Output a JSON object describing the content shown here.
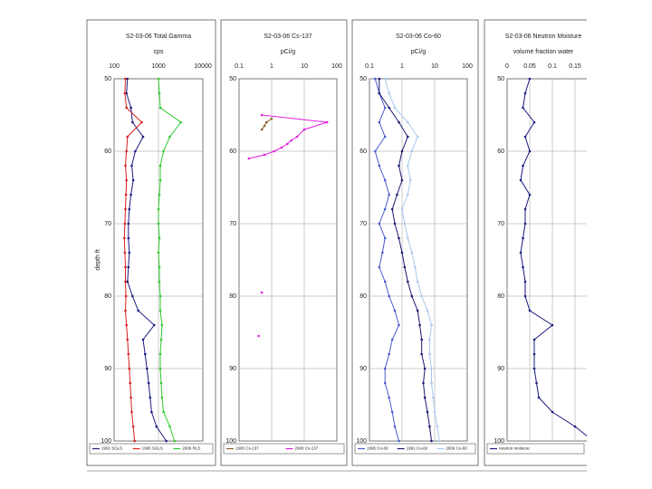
{
  "chart_data": [
    {
      "type": "line",
      "title": "S2-03-06 Total Gamma",
      "xlabel": "cps",
      "ylabel": "depth ft",
      "xlog": true,
      "xlim": [
        100,
        10000
      ],
      "xticks": [
        100,
        1000,
        10000
      ],
      "ylim": [
        50,
        100
      ],
      "yticks": [
        50,
        60,
        70,
        80,
        90,
        100
      ],
      "grid": true,
      "series": [
        {
          "name": "1991 SGLS",
          "color": "#1a1a80",
          "y": [
            50,
            52,
            54,
            56,
            58,
            60,
            62,
            64,
            66,
            68,
            70,
            72,
            74,
            76,
            78,
            80,
            82,
            84,
            86,
            88,
            90,
            92,
            94,
            96,
            98,
            100
          ],
          "values": [
            200,
            190,
            240,
            260,
            450,
            300,
            250,
            270,
            240,
            220,
            210,
            210,
            220,
            210,
            200,
            260,
            350,
            800,
            450,
            500,
            550,
            600,
            650,
            700,
            900,
            1500
          ]
        },
        {
          "name": "1995 SGLS",
          "color": "#d42020",
          "y": [
            50,
            52,
            54,
            56,
            58,
            60,
            62,
            64,
            66,
            68,
            70,
            72,
            74,
            76,
            78,
            80,
            82,
            84,
            86,
            88,
            90,
            92,
            94,
            96,
            98,
            100
          ],
          "values": [
            180,
            175,
            190,
            420,
            200,
            190,
            180,
            190,
            185,
            180,
            175,
            170,
            175,
            180,
            180,
            185,
            180,
            190,
            200,
            210,
            220,
            230,
            240,
            250,
            270,
            290
          ]
        },
        {
          "name": "2006 RLS",
          "color": "#2ec82e",
          "y": [
            50,
            52,
            54,
            56,
            58,
            60,
            62,
            64,
            66,
            68,
            70,
            72,
            74,
            76,
            78,
            80,
            82,
            84,
            86,
            88,
            90,
            92,
            94,
            96,
            98,
            100
          ],
          "values": [
            1000,
            1050,
            1100,
            3200,
            1800,
            1300,
            1100,
            1100,
            1050,
            1000,
            1000,
            1050,
            1000,
            1050,
            1050,
            1100,
            1100,
            1200,
            1150,
            1100,
            1100,
            1150,
            1200,
            1300,
            1800,
            2300
          ]
        }
      ]
    },
    {
      "type": "line",
      "title": "S2-03-06 Cs-137",
      "xlabel": "pCi/g",
      "xlog": true,
      "xlim": [
        0.1,
        100
      ],
      "xticks": [
        0.1,
        1,
        10,
        100
      ],
      "ylim": [
        50,
        100
      ],
      "yticks": [
        50,
        60,
        70,
        80,
        90,
        100
      ],
      "grid": true,
      "series": [
        {
          "name": "1995 Cs-137",
          "color": "#8a5a2a",
          "y": [
            55.5,
            56,
            56.5,
            57
          ],
          "values": [
            1,
            0.7,
            0.6,
            0.5
          ]
        },
        {
          "name": "2006 Cs-137",
          "color": "#e020e0",
          "y": [
            55,
            56,
            57,
            58,
            58.5,
            59,
            59.5,
            60,
            60.5,
            61,
            null,
            79.5,
            null,
            85.5
          ],
          "values": [
            0.5,
            50,
            10,
            6,
            4,
            3,
            2,
            1.2,
            0.6,
            0.2,
            null,
            0.5,
            null,
            0.4
          ]
        }
      ]
    },
    {
      "type": "line",
      "title": "S2-03-06 Co-60",
      "xlabel": "pCi/g",
      "xlog": true,
      "xlim": [
        0.1,
        100
      ],
      "xticks": [
        0.1,
        1,
        10,
        100
      ],
      "ylim": [
        50,
        100
      ],
      "yticks": [
        50,
        60,
        70,
        80,
        90,
        100
      ],
      "grid": true,
      "series": [
        {
          "name": "1995 Co-60",
          "color": "#4a5ad0",
          "y": [
            50,
            52,
            54,
            56,
            58,
            60,
            62,
            64,
            66,
            68,
            70,
            72,
            74,
            76,
            78,
            80,
            82,
            84,
            86,
            88,
            90,
            92,
            94,
            96,
            98,
            100
          ],
          "values": [
            0.15,
            0.2,
            0.3,
            0.2,
            0.3,
            0.15,
            0.2,
            0.3,
            0.4,
            0.3,
            0.2,
            0.3,
            0.25,
            0.2,
            0.3,
            0.4,
            0.6,
            0.8,
            0.5,
            0.4,
            0.3,
            0.3,
            0.4,
            0.5,
            0.6,
            0.8
          ]
        },
        {
          "name": "1991 Co-60",
          "color": "#1a1a70",
          "y": [
            50,
            52,
            54,
            56,
            58,
            60,
            62,
            64,
            66,
            68,
            70,
            72,
            74,
            76,
            78,
            80,
            82,
            84,
            86,
            88,
            90,
            92,
            94,
            96,
            98,
            100
          ],
          "values": [
            0.2,
            0.2,
            0.4,
            0.8,
            1.5,
            1,
            0.8,
            1,
            0.7,
            0.5,
            0.6,
            0.8,
            1,
            1.2,
            1.5,
            2,
            3,
            3.5,
            4,
            4,
            5,
            4.5,
            5,
            6,
            7,
            8
          ]
        },
        {
          "name": "2006 Co-60",
          "color": "#a8c8ee",
          "y": [
            50,
            52,
            54,
            56,
            58,
            60,
            62,
            64,
            66,
            68,
            70,
            72,
            74,
            76,
            78,
            80,
            82,
            84,
            86,
            88,
            90,
            92,
            94,
            96,
            98,
            100
          ],
          "values": [
            0.3,
            0.4,
            0.6,
            1.5,
            3,
            2,
            1.5,
            1.8,
            1.5,
            1,
            1.2,
            1.5,
            2,
            2.5,
            3,
            4,
            6,
            8,
            7,
            7,
            8,
            8,
            9,
            10,
            12,
            14
          ]
        }
      ]
    },
    {
      "type": "line",
      "title": "S2-03-06 Neutron Moisture",
      "xlabel": "volume fraction water",
      "xlog": false,
      "xlim": [
        0,
        0.2
      ],
      "xticks": [
        0,
        0.05,
        0.1,
        0.15
      ],
      "ylim": [
        50,
        100
      ],
      "yticks": [
        50,
        60,
        70,
        80,
        90,
        100
      ],
      "grid": true,
      "series": [
        {
          "name": "neutron moisture",
          "color": "#1a1a80",
          "y": [
            50,
            52,
            54,
            56,
            58,
            60,
            62,
            64,
            66,
            68,
            70,
            72,
            74,
            76,
            78,
            80,
            82,
            84,
            86,
            88,
            90,
            92,
            94,
            96,
            98,
            100
          ],
          "values": [
            0.05,
            0.04,
            0.035,
            0.06,
            0.04,
            0.05,
            0.035,
            0.03,
            0.05,
            0.04,
            0.04,
            0.035,
            0.03,
            0.035,
            0.04,
            0.04,
            0.05,
            0.1,
            0.06,
            0.06,
            0.06,
            0.065,
            0.07,
            0.1,
            0.15,
            0.19
          ]
        }
      ]
    }
  ]
}
